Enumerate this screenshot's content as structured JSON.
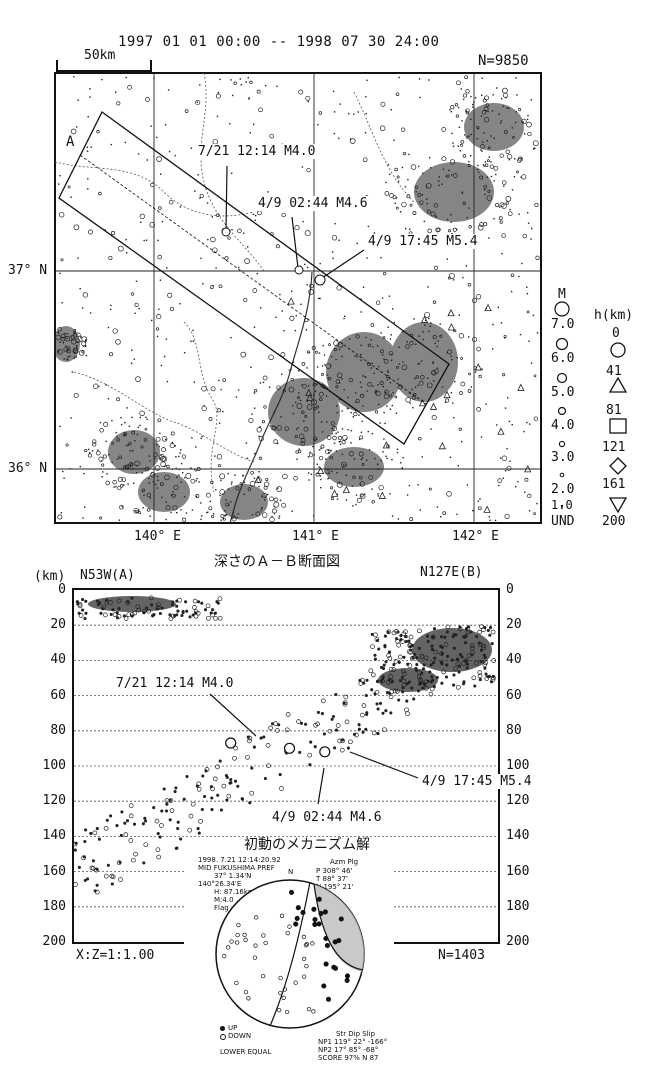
{
  "header": {
    "period": "1997 01 01 00:00 -- 1998 07 30 24:00",
    "scale_label": "50km",
    "count": "N=9850"
  },
  "map": {
    "lat_labels": [
      "37° N",
      "36° N"
    ],
    "lon_labels": [
      "140° E",
      "141° E",
      "142° E"
    ],
    "section_end_label": "A",
    "events": [
      "7/21 12:14 M4.0",
      "4/9 02:44 M4.6",
      "4/9 17:45 M5.4"
    ]
  },
  "magnitude_legend": {
    "title": "M",
    "items": [
      "7.0",
      "6.0",
      "5.0",
      "4.0",
      "3.0",
      "2.0",
      "1.0",
      "UND"
    ]
  },
  "depth_legend": {
    "title": "h(km)",
    "items": [
      {
        "value": "0",
        "symbol": "circle-small"
      },
      {
        "value": "41",
        "symbol": "circle"
      },
      {
        "value": "81",
        "symbol": "triangle"
      },
      {
        "value": "121",
        "symbol": "square"
      },
      {
        "value": "161",
        "symbol": "diamond"
      },
      {
        "value": "200",
        "symbol": "triangle-down"
      }
    ]
  },
  "section": {
    "title": "深さのＡ－Ｂ断面図",
    "left_label": "N53W(A)",
    "right_label": "N127E(B)",
    "unit_label": "(km)",
    "depth_ticks": [
      "0",
      "20",
      "40",
      "60",
      "80",
      "100",
      "120",
      "140",
      "160",
      "180",
      "200"
    ],
    "ratio": "X:Z=1:1.00",
    "count": "N=1403",
    "events": [
      "7/21 12:14 M4.0",
      "4/9 02:44 M4.6",
      "4/9 17:45 M5.4"
    ]
  },
  "mechanism": {
    "title": "初動のメカニズム解",
    "info": [
      "1998. 7.21 12:14:20.92",
      "MID FUKUSHIMA PREF",
      "37° 1.34'N",
      "140°26.34'E",
      "H: 87.16km",
      "M:4.0",
      "Flag : SANDO"
    ],
    "axes_header": "Azm Plg",
    "axes": [
      "P  308° 46'",
      "T   88° 37'",
      "N  195° 21'"
    ],
    "north_label": "N",
    "legend_up": "UP",
    "legend_down": "DOWN",
    "projection": "LOWER EQUAL",
    "solution_header": "Str Dip Slip",
    "solution": [
      "NP1 119° 22° -166°",
      "NP2  17° 85° -68°",
      "SCORE  97%    N 87"
    ]
  },
  "chart_data": {
    "type": "scatter",
    "title": "深さのＡ－Ｂ断面図",
    "ylabel": "(km)",
    "ylim": [
      0,
      200
    ],
    "y_reversed": true,
    "series": [
      {
        "name": "7/21 12:14 M4.0",
        "x": [
          0.27
        ],
        "y": [
          87
        ]
      },
      {
        "name": "4/9 02:44 M4.6",
        "x": [
          0.37
        ],
        "y": [
          90
        ]
      },
      {
        "name": "4/9 17:45 M5.4",
        "x": [
          0.43
        ],
        "y": [
          92
        ]
      }
    ]
  }
}
